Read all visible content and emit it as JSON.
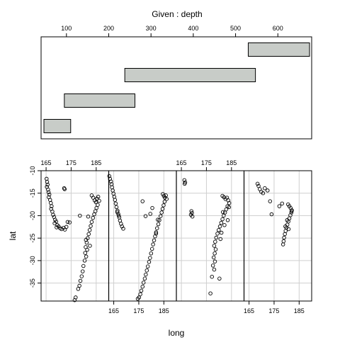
{
  "chart_data": [
    {
      "type": "range-bar",
      "title": "Given : depth",
      "x_ticks": [
        "100",
        "200",
        "300",
        "400",
        "500",
        "600"
      ],
      "x_tick_values": [
        100,
        200,
        300,
        400,
        500,
        600
      ],
      "xlim": [
        40,
        680
      ],
      "intervals": [
        {
          "start": 40,
          "end": 110
        },
        {
          "start": 95,
          "end": 262
        },
        {
          "start": 238,
          "end": 547
        },
        {
          "start": 530,
          "end": 680
        }
      ],
      "colors": {
        "bar_fill": "#c8ccc8",
        "bar_stroke": "#000000"
      }
    },
    {
      "type": "scatter",
      "xlabel": "long",
      "ylabel": "lat",
      "x_ticks": [
        "165",
        "175",
        "185"
      ],
      "x_tick_values": [
        165,
        175,
        185
      ],
      "y_ticks": [
        "-10",
        "-15",
        "-20",
        "-25",
        "-30",
        "-35"
      ],
      "y_tick_values": [
        -10,
        -15,
        -20,
        -25,
        -30,
        -35
      ],
      "xlim": [
        163,
        190
      ],
      "ylim": [
        -39,
        -10
      ],
      "panels": [
        {
          "points": [
            [
              165.2,
              -11.8
            ],
            [
              165.4,
              -12.5
            ],
            [
              165.6,
              -13.1
            ],
            [
              165.3,
              -13.6
            ],
            [
              165.8,
              -14.2
            ],
            [
              166.0,
              -14.8
            ],
            [
              166.3,
              -15.3
            ],
            [
              166.1,
              -15.9
            ],
            [
              166.6,
              -16.5
            ],
            [
              166.9,
              -17.2
            ],
            [
              167.2,
              -17.9
            ],
            [
              167.0,
              -18.5
            ],
            [
              167.5,
              -19.1
            ],
            [
              167.8,
              -19.8
            ],
            [
              168.2,
              -20.3
            ],
            [
              168.6,
              -20.9
            ],
            [
              169.0,
              -21.3
            ],
            [
              168.4,
              -21.7
            ],
            [
              169.5,
              -22.1
            ],
            [
              170.0,
              -22.4
            ],
            [
              169.2,
              -22.6
            ],
            [
              170.6,
              -22.8
            ],
            [
              171.2,
              -23.0
            ],
            [
              172.0,
              -22.7
            ],
            [
              172.5,
              -23.1
            ],
            [
              173.1,
              -22.5
            ],
            [
              173.6,
              -21.4
            ],
            [
              174.4,
              -21.5
            ],
            [
              172.2,
              -13.9
            ],
            [
              172.4,
              -14.1
            ],
            [
              183.2,
              -15.5
            ],
            [
              183.8,
              -16.0
            ],
            [
              184.4,
              -16.6
            ],
            [
              184.9,
              -17.0
            ],
            [
              185.3,
              -16.2
            ],
            [
              185.8,
              -15.8
            ],
            [
              186.2,
              -16.7
            ],
            [
              185.6,
              -17.6
            ],
            [
              185.1,
              -18.3
            ],
            [
              184.7,
              -19.0
            ],
            [
              184.2,
              -19.7
            ],
            [
              183.7,
              -20.5
            ],
            [
              183.2,
              -21.4
            ],
            [
              182.8,
              -22.3
            ],
            [
              182.4,
              -23.2
            ],
            [
              182.0,
              -24.1
            ],
            [
              181.6,
              -25.0
            ],
            [
              181.2,
              -26.0
            ],
            [
              180.8,
              -27.0
            ],
            [
              181.4,
              -27.6
            ],
            [
              180.6,
              -28.3
            ],
            [
              181.0,
              -29.1
            ],
            [
              180.4,
              -30.0
            ],
            [
              179.9,
              -31.2
            ],
            [
              179.6,
              -32.4
            ],
            [
              179.2,
              -33.5
            ],
            [
              178.7,
              -34.5
            ],
            [
              178.3,
              -35.6
            ],
            [
              177.8,
              -36.3
            ],
            [
              180.9,
              -25.4
            ],
            [
              182.5,
              -26.7
            ],
            [
              181.8,
              -20.2
            ],
            [
              178.5,
              -20.0
            ],
            [
              176.8,
              -38.2
            ],
            [
              176.4,
              -38.8
            ]
          ]
        },
        {
          "points": [
            [
              163.2,
              -11.2
            ],
            [
              163.5,
              -11.8
            ],
            [
              163.9,
              -12.4
            ],
            [
              164.1,
              -13.0
            ],
            [
              164.3,
              -13.7
            ],
            [
              164.6,
              -14.4
            ],
            [
              164.9,
              -15.1
            ],
            [
              165.2,
              -15.8
            ],
            [
              165.5,
              -16.5
            ],
            [
              165.8,
              -17.3
            ],
            [
              166.1,
              -18.1
            ],
            [
              166.5,
              -18.9
            ],
            [
              166.8,
              -19.6
            ],
            [
              167.2,
              -20.4
            ],
            [
              167.5,
              -21.1
            ],
            [
              167.9,
              -21.8
            ],
            [
              168.3,
              -22.4
            ],
            [
              168.8,
              -22.9
            ],
            [
              167.0,
              -20.0
            ],
            [
              166.4,
              -19.2
            ],
            [
              184.6,
              -15.2
            ],
            [
              185.0,
              -15.6
            ],
            [
              185.4,
              -16.0
            ],
            [
              185.8,
              -15.5
            ],
            [
              186.1,
              -16.3
            ],
            [
              185.3,
              -16.9
            ],
            [
              184.9,
              -17.7
            ],
            [
              184.5,
              -18.5
            ],
            [
              184.1,
              -19.3
            ],
            [
              183.7,
              -20.1
            ],
            [
              183.2,
              -21.0
            ],
            [
              182.8,
              -21.9
            ],
            [
              182.3,
              -22.8
            ],
            [
              181.9,
              -23.7
            ],
            [
              181.5,
              -24.6
            ],
            [
              181.1,
              -25.5
            ],
            [
              180.7,
              -26.4
            ],
            [
              180.3,
              -27.4
            ],
            [
              179.9,
              -28.4
            ],
            [
              179.5,
              -29.4
            ],
            [
              179.1,
              -30.3
            ],
            [
              178.6,
              -31.3
            ],
            [
              178.2,
              -32.2
            ],
            [
              177.8,
              -33.1
            ],
            [
              177.4,
              -34.0
            ],
            [
              176.9,
              -34.9
            ],
            [
              176.5,
              -35.8
            ],
            [
              176.0,
              -36.7
            ],
            [
              175.6,
              -37.5
            ],
            [
              175.1,
              -38.2
            ],
            [
              174.6,
              -38.5
            ],
            [
              176.5,
              -16.8
            ],
            [
              177.7,
              -20.1
            ],
            [
              180.4,
              -18.3
            ],
            [
              181.9,
              -24.0
            ],
            [
              179.6,
              -19.6
            ],
            [
              182.6,
              -20.9
            ]
          ]
        },
        {
          "points": [
            [
              166.2,
              -12.1
            ],
            [
              166.5,
              -12.6
            ],
            [
              166.3,
              -12.9
            ],
            [
              169.0,
              -19.0
            ],
            [
              169.2,
              -19.4
            ],
            [
              168.8,
              -19.8
            ],
            [
              169.4,
              -20.2
            ],
            [
              181.4,
              -15.6
            ],
            [
              182.0,
              -15.9
            ],
            [
              182.6,
              -16.3
            ],
            [
              183.2,
              -16.0
            ],
            [
              183.7,
              -16.6
            ],
            [
              184.1,
              -17.2
            ],
            [
              183.4,
              -17.9
            ],
            [
              182.9,
              -18.6
            ],
            [
              182.4,
              -19.3
            ],
            [
              181.9,
              -20.0
            ],
            [
              181.4,
              -20.8
            ],
            [
              180.9,
              -21.6
            ],
            [
              180.4,
              -22.4
            ],
            [
              179.9,
              -23.2
            ],
            [
              179.4,
              -24.0
            ],
            [
              178.9,
              -24.9
            ],
            [
              178.5,
              -25.8
            ],
            [
              178.1,
              -26.7
            ],
            [
              178.7,
              -27.5
            ],
            [
              178.3,
              -28.4
            ],
            [
              177.9,
              -29.3
            ],
            [
              178.4,
              -30.2
            ],
            [
              177.6,
              -31.1
            ],
            [
              178.1,
              -32.0
            ],
            [
              177.2,
              -33.6
            ],
            [
              176.6,
              -37.3
            ],
            [
              180.2,
              -34.0
            ],
            [
              181.0,
              -23.8
            ],
            [
              182.2,
              -22.1
            ],
            [
              183.5,
              -21.0
            ],
            [
              180.6,
              -25.2
            ],
            [
              181.6,
              -19.2
            ],
            [
              184.0,
              -18.1
            ]
          ]
        },
        {
          "points": [
            [
              168.4,
              -12.9
            ],
            [
              168.8,
              -13.4
            ],
            [
              169.3,
              -14.1
            ],
            [
              169.9,
              -14.7
            ],
            [
              170.6,
              -15.0
            ],
            [
              171.3,
              -13.9
            ],
            [
              172.4,
              -14.4
            ],
            [
              173.4,
              -16.8
            ],
            [
              174.0,
              -19.7
            ],
            [
              180.6,
              -17.5
            ],
            [
              181.1,
              -17.9
            ],
            [
              181.6,
              -18.3
            ],
            [
              182.1,
              -18.8
            ],
            [
              181.9,
              -19.3
            ],
            [
              181.5,
              -19.9
            ],
            [
              181.1,
              -20.6
            ],
            [
              180.7,
              -21.3
            ],
            [
              180.3,
              -22.0
            ],
            [
              179.9,
              -22.7
            ],
            [
              179.6,
              -23.4
            ],
            [
              179.3,
              -24.1
            ],
            [
              179.0,
              -24.9
            ],
            [
              178.8,
              -25.7
            ],
            [
              178.6,
              -26.4
            ],
            [
              180.2,
              -21.0
            ],
            [
              179.5,
              -22.4
            ],
            [
              178.2,
              -17.3
            ],
            [
              177.1,
              -17.9
            ],
            [
              180.8,
              -23.0
            ],
            [
              182.0,
              -19.0
            ]
          ]
        }
      ],
      "colors": {
        "point_stroke": "#000000",
        "grid": "#cfcfcf",
        "divider": "#000000"
      }
    }
  ]
}
